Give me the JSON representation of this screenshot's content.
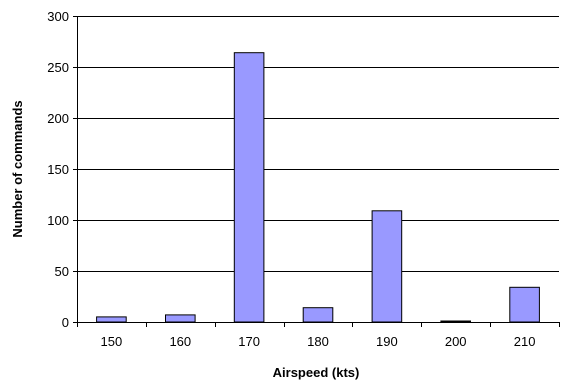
{
  "chart_data": {
    "type": "bar",
    "title": "",
    "xlabel": "Airspeed (kts)",
    "ylabel": "Number of commands",
    "categories": [
      "150",
      "160",
      "170",
      "180",
      "190",
      "200",
      "210"
    ],
    "series": [
      {
        "values": [
          5,
          7,
          264,
          14,
          109,
          1,
          34
        ]
      }
    ],
    "ylim": [
      0,
      300
    ],
    "yticks": [
      "0",
      "50",
      "100",
      "150",
      "200",
      "250",
      "300"
    ],
    "grid": true,
    "legend": "none",
    "colors": {
      "bar_fill": "#9999ff",
      "bar_stroke": "#000000",
      "grid": "#000000",
      "axis": "#000000"
    }
  }
}
